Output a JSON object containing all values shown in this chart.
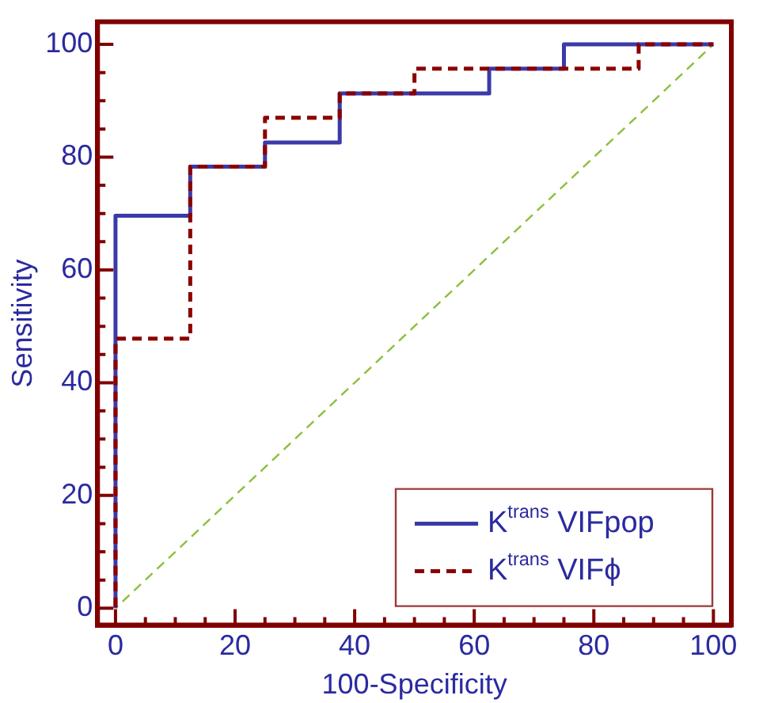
{
  "chart_data": {
    "type": "step",
    "xlabel": "100-Specificity",
    "ylabel": "Sensitivity",
    "xlim": [
      -3,
      103
    ],
    "ylim": [
      -3,
      104
    ],
    "xticks": [
      0,
      20,
      40,
      60,
      80,
      100
    ],
    "yticks": [
      0,
      20,
      40,
      60,
      80,
      100
    ],
    "grid": false,
    "legend": "bottom right",
    "marker": "none",
    "series": [
      {
        "name": "K$^{trans}$ VIFpop",
        "color": "#3a3aa8",
        "line_style": "solid",
        "x": [
          0,
          0,
          12.5,
          25,
          37.5,
          62.5,
          75,
          100
        ],
        "values": [
          0,
          69.6,
          78.3,
          82.6,
          91.3,
          95.7,
          100,
          100
        ]
      },
      {
        "name": "K$^{trans}$ VIFϕ",
        "color": "#8b0000",
        "line_style": "dashed",
        "x": [
          0,
          0,
          12.5,
          25,
          37.5,
          50,
          87.5,
          100
        ],
        "values": [
          0,
          47.8,
          78.3,
          87.0,
          91.3,
          95.7,
          100,
          100
        ]
      },
      {
        "type": "line",
        "color": "#8cbf3c",
        "line_style": "dashed",
        "x": [
          0,
          100
        ],
        "values": [
          0,
          100
        ]
      }
    ]
  }
}
